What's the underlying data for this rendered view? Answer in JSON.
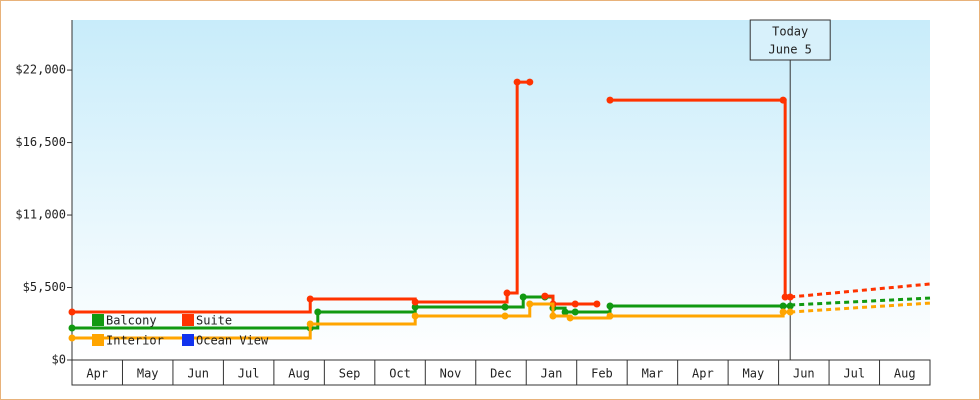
{
  "chart_data": {
    "type": "step-line",
    "categories": [
      "Apr",
      "May",
      "Jun",
      "Jul",
      "Aug",
      "Sep",
      "Oct",
      "Nov",
      "Dec",
      "Jan",
      "Feb",
      "Mar",
      "Apr",
      "May",
      "Jun",
      "Jul",
      "Aug"
    ],
    "xlim": [
      0,
      17
    ],
    "ylim": [
      0,
      25800
    ],
    "yticks": [
      {
        "value": 0,
        "label": "$0"
      },
      {
        "value": 5500,
        "label": "$5,500"
      },
      {
        "value": 11000,
        "label": "$11,000"
      },
      {
        "value": 16500,
        "label": "$16,500"
      },
      {
        "value": 22000,
        "label": "$22,000"
      }
    ],
    "today": {
      "x": 14.23,
      "label": [
        "Today",
        "June 5"
      ]
    },
    "series": [
      {
        "name": "Balcony",
        "color": "#119911",
        "x": [
          0,
          4.72,
          4.87,
          6.8,
          8.58,
          8.94,
          9.37,
          9.53,
          9.77,
          9.97,
          10.66,
          14.09,
          14.23
        ],
        "values": [
          2430,
          2430,
          3640,
          4020,
          4020,
          4780,
          4780,
          3940,
          3640,
          3640,
          4100,
          4100,
          4100
        ],
        "forecast": {
          "x": [
            14.23,
            17
          ],
          "values": [
            4170,
            4700
          ]
        }
      },
      {
        "name": "Suite",
        "color": "#ff3300",
        "x": [
          0,
          4.72,
          6.8,
          8.62,
          8.82,
          9.07,
          null,
          9.37,
          9.53,
          9.97,
          10.4,
          null,
          10.66,
          14.09,
          14.13,
          14.23
        ],
        "values": [
          3640,
          4630,
          4400,
          5080,
          21090,
          21090,
          null,
          4850,
          4250,
          4250,
          4250,
          null,
          19720,
          19720,
          4780,
          4780
        ],
        "forecast": {
          "x": [
            14.23,
            17
          ],
          "values": [
            4780,
            5770
          ]
        }
      },
      {
        "name": "Interior",
        "color": "#ffa500",
        "x": [
          0,
          4.72,
          6.8,
          8.58,
          9.07,
          9.53,
          9.87,
          10.66,
          14.09,
          14.23
        ],
        "values": [
          1670,
          2730,
          3340,
          3340,
          4250,
          3340,
          3190,
          3340,
          3640,
          3640
        ],
        "forecast": {
          "x": [
            14.23,
            17
          ],
          "values": [
            3640,
            4320
          ]
        }
      },
      {
        "name": "Ocean View",
        "color": "#1133ee",
        "x": [],
        "values": []
      }
    ]
  }
}
